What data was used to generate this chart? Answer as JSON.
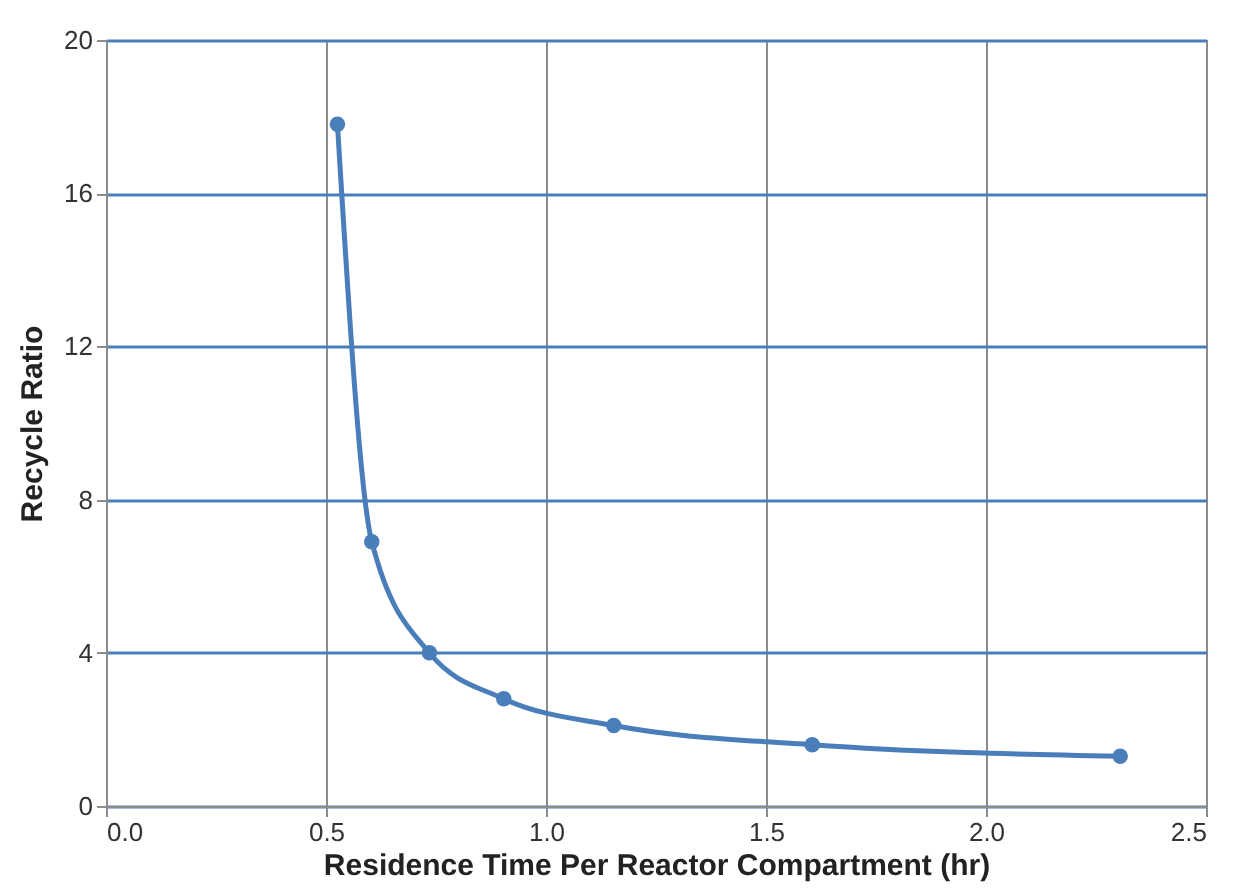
{
  "chart_data": {
    "type": "line",
    "xlabel": "Residence Time Per Reactor Compartment (hr)",
    "ylabel": "Recycle Ratio",
    "series": [
      {
        "color": "#4a7ebb",
        "x": [
          0.526,
          0.604,
          0.735,
          0.904,
          1.154,
          1.605,
          2.305
        ],
        "values": [
          17.8,
          6.9,
          4.0,
          2.8,
          2.1,
          1.6,
          1.3
        ]
      }
    ],
    "xlim": [
      0,
      2.5
    ],
    "xticks": [
      {
        "value": 0,
        "label": "0.0"
      },
      0.5,
      {
        "value": 1,
        "label": "1.0"
      },
      1.5,
      {
        "value": 2,
        "label": "2.0"
      },
      2.5
    ],
    "ylim": [
      0,
      20
    ],
    "yticks": [
      0,
      4,
      8,
      12,
      16,
      20
    ],
    "grid": true,
    "marker": "circle",
    "line_style": "solid"
  }
}
